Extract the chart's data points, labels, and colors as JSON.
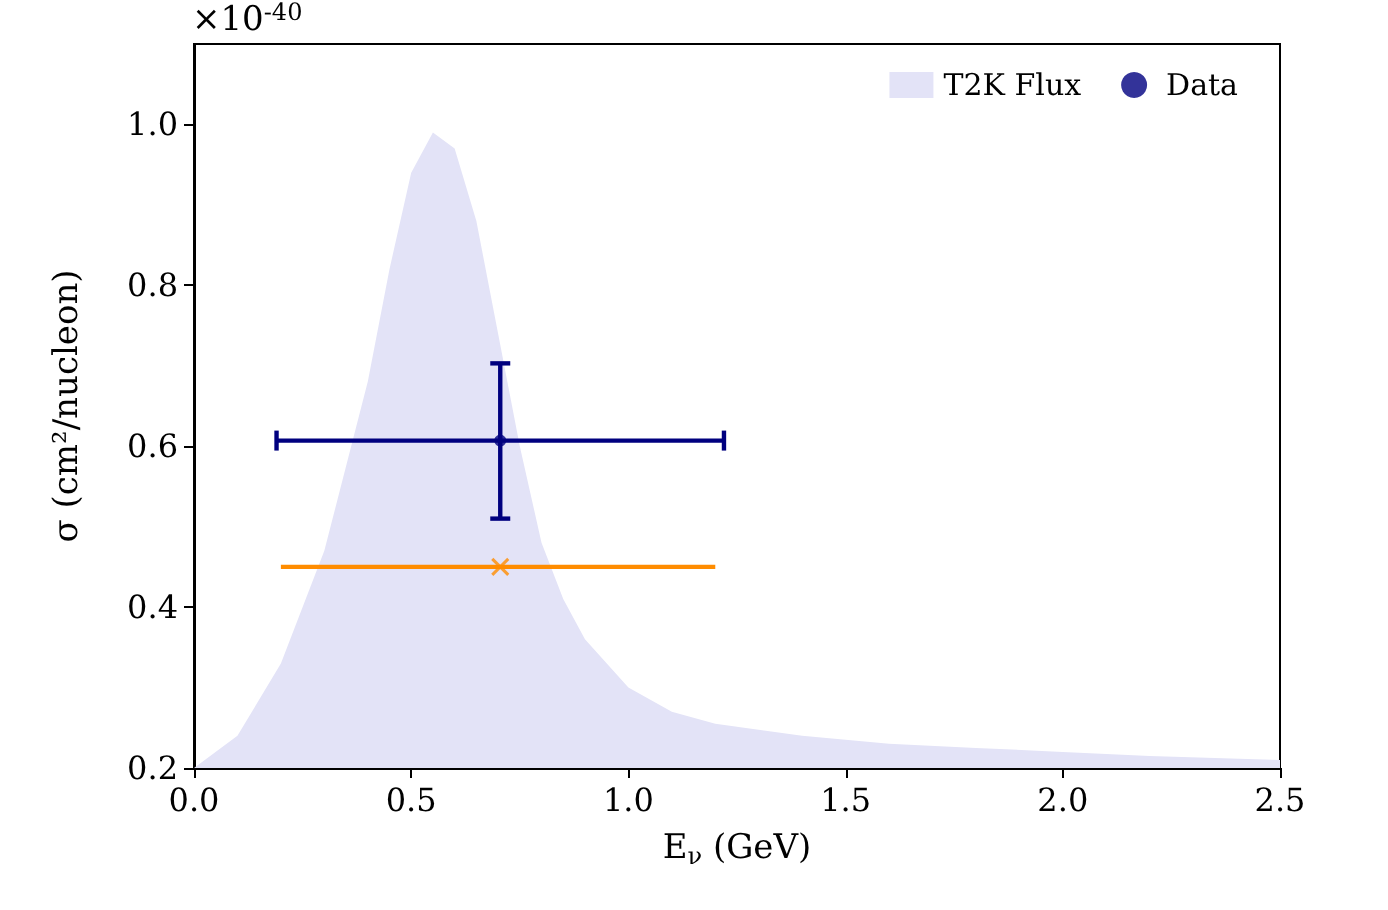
{
  "chart_data": {
    "type": "scatter",
    "xlabel": "E$_{ν}$ (GeV)",
    "ylabel": "σ (cm²/nucleon)",
    "annotations": [
      "×10$^{-40}$"
    ],
    "xlim": [
      0,
      2.5
    ],
    "xticks": [
      {
        "value": 0,
        "label": "0.0"
      },
      0.5,
      {
        "value": 1,
        "label": "1.0"
      },
      1.5,
      {
        "value": 2,
        "label": "2.0"
      },
      2.5
    ],
    "ylim": [
      0.2,
      1.1
    ],
    "yticks": [
      0.2,
      0.4,
      0.6,
      0.8,
      {
        "value": 1,
        "label": "1.0"
      }
    ],
    "grid": false,
    "legend": "top right",
    "series": [
      {
        "name": "T2K Flux",
        "type": "area",
        "color": "#e3e3f7",
        "x": [
          0,
          0.1,
          0.2,
          0.3,
          0.4,
          0.45,
          0.5,
          0.55,
          0.6,
          0.65,
          0.7,
          0.75,
          0.8,
          0.85,
          0.9,
          1.0,
          1.1,
          1.2,
          1.4,
          1.6,
          1.8,
          2.0,
          2.2,
          2.5
        ],
        "values": [
          0.2,
          0.24,
          0.33,
          0.47,
          0.68,
          0.82,
          0.94,
          0.99,
          0.97,
          0.88,
          0.74,
          0.6,
          0.48,
          0.41,
          0.36,
          0.3,
          0.27,
          0.255,
          0.24,
          0.23,
          0.225,
          0.22,
          0.215,
          0.21
        ]
      },
      {
        "name": "Data",
        "color": "#00007f",
        "marker": "circle",
        "x": [
          0.705
        ],
        "values": [
          0.607
        ],
        "errors": [
          [
            0.51,
            0.703
          ]
        ],
        "xerrors": [
          [
            0.19,
            1.22
          ]
        ]
      },
      {
        "color": "#ff8c00",
        "marker": "cross",
        "x": [
          0.705
        ],
        "values": [
          0.45
        ],
        "xerrors": [
          [
            0.2,
            1.2
          ]
        ]
      }
    ]
  }
}
